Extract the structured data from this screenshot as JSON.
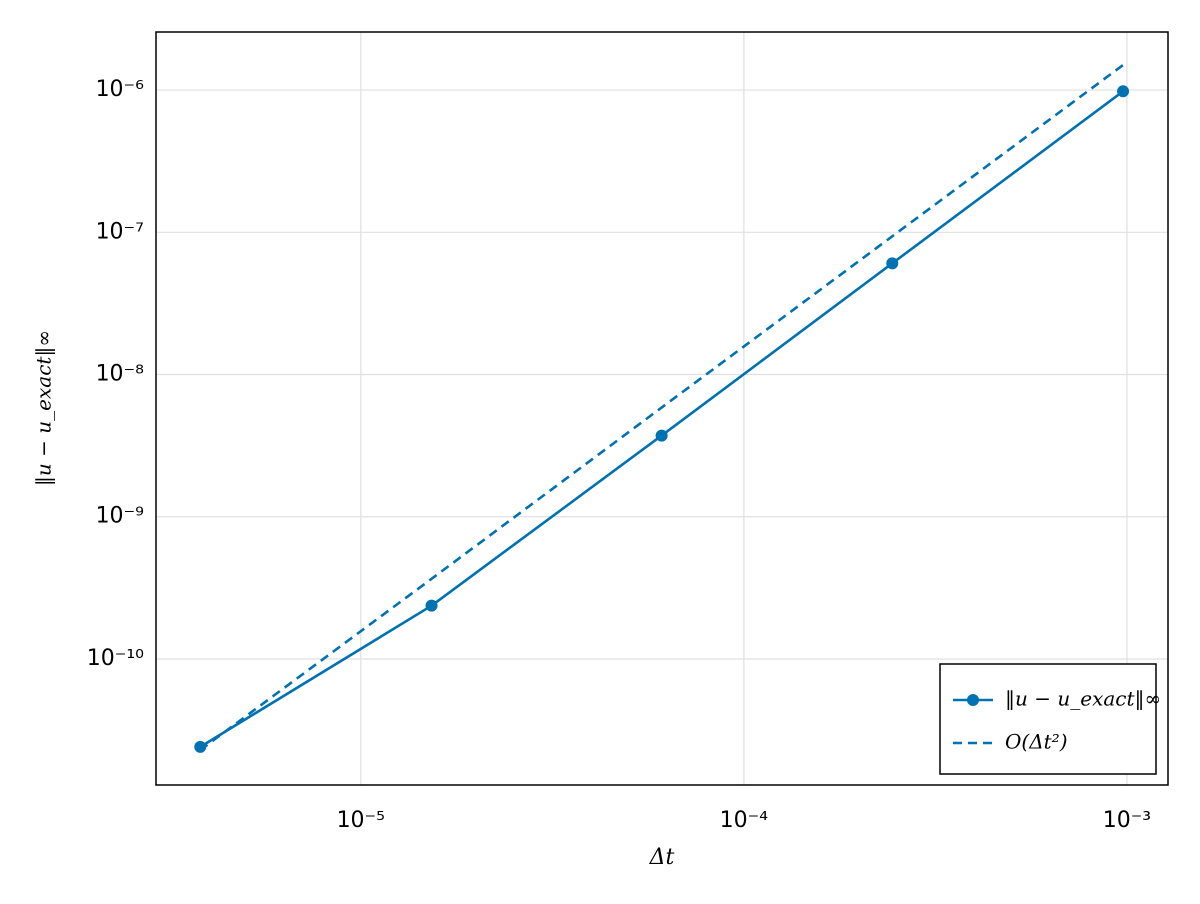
{
  "chart_data": {
    "type": "line",
    "x_label": "Δt",
    "y_label": "‖u − u_exact‖∞",
    "x_scale": "log",
    "y_scale": "log",
    "x": [
      3.81e-06,
      1.53e-05,
      6.1e-05,
      0.000244,
      0.000977
    ],
    "series": [
      {
        "name": "‖u − u_exact‖∞",
        "color": "#0072b2",
        "linestyle": "solid",
        "marker": "circle",
        "values": [
          2.41e-11,
          2.37e-10,
          3.72e-09,
          6.05e-08,
          9.8e-07
        ]
      },
      {
        "name": "O(Δt²)",
        "color": "#0072b2",
        "linestyle": "dashed",
        "marker": "none",
        "values": [
          2.29e-11,
          3.66e-10,
          5.86e-09,
          9.37e-08,
          1.5e-06
        ]
      }
    ],
    "xlim": [
      2.92e-06,
      0.00128
    ],
    "ylim": [
      1.3e-11,
      2.56e-06
    ],
    "xticks": [
      {
        "value": 1e-05,
        "label": "10⁻⁵"
      },
      {
        "value": 0.0001,
        "label": "10⁻⁴"
      },
      {
        "value": 0.001,
        "label": "10⁻³"
      }
    ],
    "yticks": [
      {
        "value": 1e-10,
        "label": "10⁻¹⁰"
      },
      {
        "value": 1e-09,
        "label": "10⁻⁹"
      },
      {
        "value": 1e-08,
        "label": "10⁻⁸"
      },
      {
        "value": 1e-07,
        "label": "10⁻⁷"
      },
      {
        "value": 1e-06,
        "label": "10⁻⁶"
      }
    ],
    "grid": true,
    "legend": "lower-right"
  }
}
